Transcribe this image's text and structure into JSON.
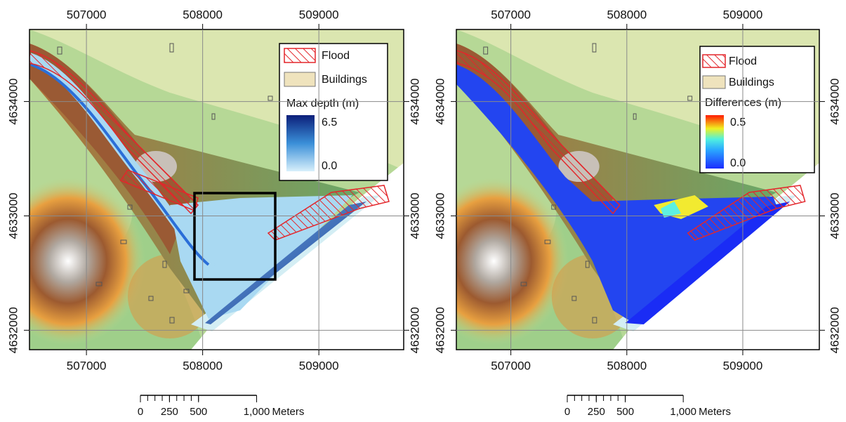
{
  "maps": [
    {
      "xlim": [
        506510,
        509730
      ],
      "ylim": [
        4631830,
        4634630
      ],
      "xticks": [
        507000,
        508000,
        509000
      ],
      "yticks": [
        4632000,
        4633000,
        4634000
      ],
      "legend": {
        "flood": "Flood",
        "buildings": "Buildings",
        "title": "Max depth (m)",
        "max": 6.5,
        "min": {
          "value": 0,
          "label": "0.0"
        }
      },
      "scale_bar": {
        "ticks": [
          0,
          250,
          500,
          {
            "value": 1000,
            "label": "1,000"
          }
        ],
        "unit": "Meters"
      }
    },
    {
      "xlim": [
        506530,
        509660
      ],
      "ylim": [
        4631830,
        4634630
      ],
      "xticks": [
        507000,
        508000,
        509000
      ],
      "yticks": [
        4632000,
        4633000,
        4634000
      ],
      "legend": {
        "flood": "Flood",
        "buildings": "Buildings",
        "title": "Differences (m)",
        "max": 0.5,
        "min": {
          "value": 0,
          "label": "0.0"
        }
      },
      "scale_bar": {
        "ticks": [
          0,
          250,
          500,
          {
            "value": 1000,
            "label": "1,000"
          }
        ],
        "unit": "Meters"
      }
    }
  ]
}
